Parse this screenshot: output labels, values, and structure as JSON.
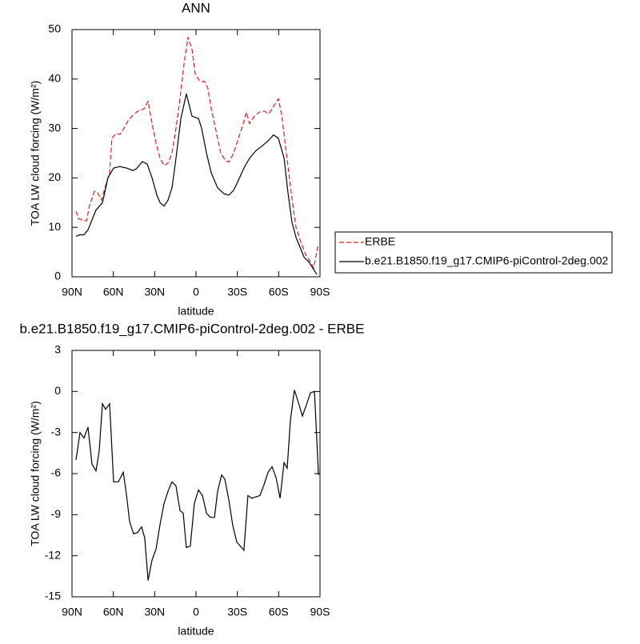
{
  "chart_data": [
    {
      "type": "line",
      "title": "ANN",
      "xlabel": "latitude",
      "ylabel": "TOA LW cloud forcing (W/m²)",
      "xlim": [
        90,
        -90
      ],
      "xticks": [
        {
          "value": 90,
          "label": "90N"
        },
        {
          "value": 60,
          "label": "60N"
        },
        {
          "value": 30,
          "label": "30N"
        },
        0,
        {
          "value": -30,
          "label": "30S"
        },
        {
          "value": -60,
          "label": "60S"
        },
        {
          "value": -90,
          "label": "90S"
        }
      ],
      "ylim": [
        0,
        50
      ],
      "yticks": [
        0,
        10,
        20,
        30,
        40,
        50
      ],
      "legend": "right",
      "series": [
        {
          "name": "ERBE",
          "color": "#e41a1c",
          "line_style": "dashed",
          "x": [
            87.1,
            85.4,
            82.5,
            79.5,
            77.2,
            73.7,
            71.4,
            68.5,
            65.6,
            62.7,
            61,
            58.1,
            55.2,
            52.3,
            49.4,
            46.4,
            42.4,
            37.7,
            34.8,
            31.9,
            29,
            26.1,
            23.2,
            20.3,
            17.4,
            14.5,
            11.6,
            8.7,
            5.8,
            2.9,
            0.6,
            -2.9,
            -6.4,
            -8.7,
            -11.1,
            -13.4,
            -15.7,
            -18,
            -21.5,
            -23.8,
            -27.3,
            -30.8,
            -34.3,
            -36.6,
            -38.9,
            -42.4,
            -45.9,
            -49.4,
            -52.9,
            -56.3,
            -59.8,
            -62.1,
            -65.6,
            -69.1,
            -72.6,
            -76.1,
            -79.6,
            -83.1,
            -85.4,
            -88.9
          ],
          "values": [
            13.3,
            11.8,
            11.5,
            11.3,
            14.5,
            17.3,
            17,
            15.5,
            18.5,
            21,
            28,
            29,
            28.8,
            30,
            31.5,
            32.5,
            33.5,
            34,
            35.5,
            31,
            27,
            24,
            22.5,
            23,
            25,
            30,
            36,
            43,
            48.5,
            46,
            41,
            39.5,
            39.5,
            38,
            34,
            31,
            28,
            25,
            23.5,
            23.2,
            25,
            28,
            31,
            33.3,
            31,
            32.5,
            33.3,
            33.5,
            33,
            34.5,
            36,
            33,
            25,
            17,
            10,
            7,
            4.5,
            3,
            1.8,
            6.7
          ]
        },
        {
          "name": "b.e21.B1850.f19_g17.CMIP6-piControl-2deg.002",
          "color": "#000000",
          "line_style": "solid",
          "x": [
            87.1,
            84.2,
            81.3,
            78.4,
            75.5,
            72.6,
            67.9,
            63.9,
            59.8,
            55.2,
            50.6,
            45.9,
            43.5,
            38.9,
            35.4,
            31.9,
            28.4,
            26.1,
            23.2,
            20.3,
            17.4,
            14.5,
            11,
            7,
            2.9,
            -1.8,
            -4.1,
            -7.6,
            -11.1,
            -15.7,
            -20.3,
            -23.8,
            -27.3,
            -30.8,
            -34.8,
            -38.9,
            -43.5,
            -48.2,
            -52.3,
            -56.3,
            -59.8,
            -63.9,
            -66.8,
            -69.7,
            -72.6,
            -75.5,
            -78.4,
            -81.9,
            -84.2,
            -87.7
          ],
          "values": [
            8.2,
            8.5,
            8.5,
            9.5,
            11.5,
            13.5,
            15,
            20,
            22,
            22.3,
            22,
            21.5,
            21.8,
            23.3,
            22.8,
            20,
            16.5,
            15,
            14.3,
            15.5,
            18,
            24,
            32,
            37,
            32.5,
            32,
            30,
            25,
            21,
            18,
            16.8,
            16.5,
            17.5,
            19.5,
            22,
            24,
            25.5,
            26.5,
            27.5,
            28.7,
            28,
            24,
            17,
            11,
            8,
            6,
            4,
            3,
            2,
            0.5
          ]
        }
      ]
    },
    {
      "type": "line",
      "title": "b.e21.B1850.f19_g17.CMIP6-piControl-2deg.002 - ERBE",
      "xlabel": "latitude",
      "ylabel": "TOA LW cloud forcing (W/m²)",
      "xlim": [
        90,
        -90
      ],
      "xticks": [
        {
          "value": 90,
          "label": "90N"
        },
        {
          "value": 60,
          "label": "60N"
        },
        {
          "value": 30,
          "label": "30N"
        },
        0,
        {
          "value": -30,
          "label": "30S"
        },
        {
          "value": -60,
          "label": "60S"
        },
        {
          "value": -90,
          "label": "90S"
        }
      ],
      "ylim": [
        -15,
        3
      ],
      "yticks": [
        -15,
        -12,
        -9,
        -6,
        -3,
        0,
        3
      ],
      "series": [
        {
          "color": "#000000",
          "line_style": "solid",
          "x": [
            87.1,
            84.2,
            81.3,
            78.4,
            75.5,
            72.6,
            70.3,
            67.9,
            65.6,
            62.7,
            59.8,
            56.3,
            52.8,
            50.5,
            48.2,
            45.3,
            42.4,
            39.5,
            37.2,
            34.8,
            31.9,
            29,
            26.1,
            23.2,
            20.3,
            17.4,
            14.5,
            11.6,
            9.3,
            7,
            4.1,
            1.2,
            -1.8,
            -4.7,
            -7.6,
            -10.5,
            -13.4,
            -15.7,
            -18.6,
            -20.9,
            -23.8,
            -26.7,
            -29.6,
            -34.8,
            -37.7,
            -40.6,
            -43.5,
            -46.4,
            -49.4,
            -52.3,
            -55.2,
            -58.1,
            -61,
            -63.9,
            -66.2,
            -68.5,
            -71.4,
            -74.3,
            -77.2,
            -80.1,
            -83.1,
            -86,
            -88.9
          ],
          "values": [
            -5.0,
            -3.0,
            -3.4,
            -2.6,
            -5.3,
            -5.8,
            -4.4,
            -0.9,
            -1.3,
            -0.9,
            -6.6,
            -6.6,
            -5.9,
            -7.5,
            -9.5,
            -10.4,
            -10.3,
            -9.9,
            -10.7,
            -13.8,
            -12.3,
            -11.5,
            -9.7,
            -8.2,
            -7.3,
            -6.6,
            -6.9,
            -8.7,
            -8.9,
            -11.4,
            -11.3,
            -8.2,
            -7.2,
            -7.6,
            -8.9,
            -9.2,
            -9.2,
            -7.3,
            -6.1,
            -6.4,
            -7.9,
            -9.8,
            -11.0,
            -11.6,
            -7.6,
            -7.8,
            -7.7,
            -7.6,
            -6.8,
            -5.9,
            -5.5,
            -6.3,
            -7.8,
            -5.2,
            -5.6,
            -2.1,
            0.1,
            -0.8,
            -1.8,
            -1.0,
            -0.1,
            0.0,
            -6.1
          ]
        }
      ]
    }
  ]
}
